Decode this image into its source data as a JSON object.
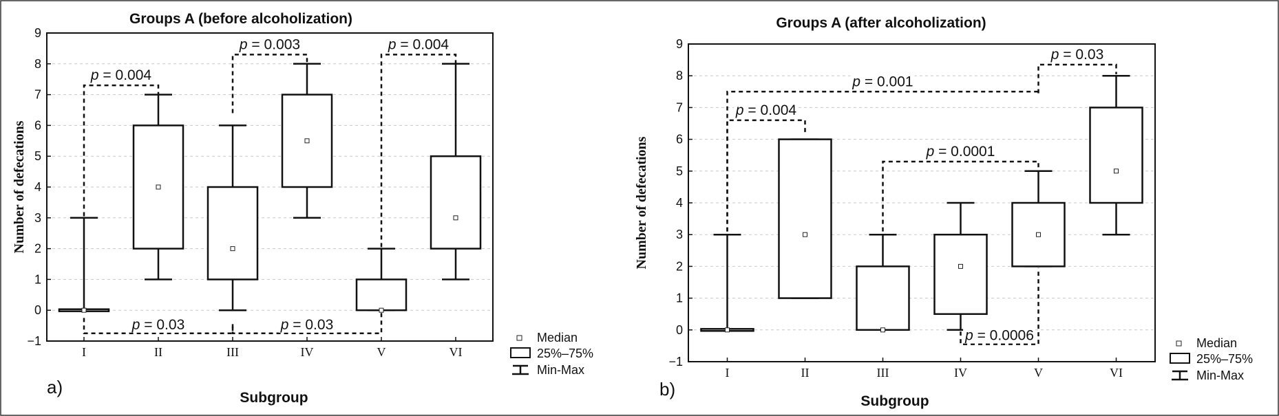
{
  "chart_data": [
    {
      "type": "box",
      "panel_label": "a)",
      "title": "Groups A (before alcoholization)",
      "xlabel": "Subgroup",
      "ylabel": "Number of defecations",
      "ylim": [
        -1,
        9
      ],
      "yticks": [
        "−1",
        "0",
        "1",
        "2",
        "3",
        "4",
        "5",
        "6",
        "7",
        "8",
        "9"
      ],
      "grid": "dashed horizontal",
      "categories": [
        "I",
        "II",
        "III",
        "IV",
        "V",
        "VI"
      ],
      "boxes": [
        {
          "min": 0,
          "q1": 0,
          "median": 0,
          "q3": 0,
          "max": 3
        },
        {
          "min": 1,
          "q1": 2,
          "median": 4,
          "q3": 6,
          "max": 7
        },
        {
          "min": 0,
          "q1": 1,
          "median": 2,
          "q3": 4,
          "max": 6
        },
        {
          "min": 3,
          "q1": 4,
          "median": 5.5,
          "q3": 7,
          "max": 8
        },
        {
          "min": 0,
          "q1": 0,
          "median": 0,
          "q3": 1,
          "max": 2
        },
        {
          "min": 1,
          "q1": 2,
          "median": 3,
          "q3": 5,
          "max": 8
        }
      ],
      "comparisons": [
        {
          "from": "I",
          "to": "II",
          "label": "p = 0.004",
          "side": "top"
        },
        {
          "from": "III",
          "to": "IV",
          "label": "p = 0.003",
          "side": "top"
        },
        {
          "from": "V",
          "to": "VI",
          "label": "p = 0.004",
          "side": "top"
        },
        {
          "from": "I",
          "to": "III",
          "label": "p = 0.03",
          "side": "bottom"
        },
        {
          "from": "III",
          "to": "V",
          "label": "p = 0.03",
          "side": "bottom"
        }
      ],
      "legend": {
        "placement": "bottom-right",
        "items": [
          "Median",
          "25%–75%",
          "Min-Max"
        ]
      }
    },
    {
      "type": "box",
      "panel_label": "b)",
      "title": "Groups A (after alcoholization)",
      "xlabel": "Subgroup",
      "ylabel": "Number of defecations",
      "ylim": [
        -1,
        9
      ],
      "yticks": [
        "−1",
        "0",
        "1",
        "2",
        "3",
        "4",
        "5",
        "6",
        "7",
        "8",
        "9"
      ],
      "grid": "dashed horizontal",
      "categories": [
        "I",
        "II",
        "III",
        "IV",
        "V",
        "VI"
      ],
      "boxes": [
        {
          "min": 0,
          "q1": 0,
          "median": 0,
          "q3": 0,
          "max": 3
        },
        {
          "min": 1,
          "q1": 1,
          "median": 3,
          "q3": 6,
          "max": 6
        },
        {
          "min": 0,
          "q1": 0,
          "median": 0,
          "q3": 2,
          "max": 3
        },
        {
          "min": 0,
          "q1": 0.5,
          "median": 2,
          "q3": 3,
          "max": 4
        },
        {
          "min": 2,
          "q1": 2,
          "median": 3,
          "q3": 4,
          "max": 5
        },
        {
          "min": 3,
          "q1": 4,
          "median": 5,
          "q3": 7,
          "max": 8
        }
      ],
      "comparisons": [
        {
          "from": "I",
          "to": "V",
          "label": "p = 0.001",
          "side": "top"
        },
        {
          "from": "I",
          "to": "II",
          "label": "p = 0.004",
          "side": "top"
        },
        {
          "from": "III",
          "to": "V",
          "label": "p = 0.0001",
          "side": "top"
        },
        {
          "from": "V",
          "to": "VI",
          "label": "p = 0.03",
          "side": "top"
        },
        {
          "from": "IV",
          "to": "V",
          "label": "p = 0.0006",
          "side": "bottom"
        }
      ],
      "legend": {
        "placement": "bottom-right",
        "items": [
          "Median",
          "25%–75%",
          "Min-Max"
        ]
      }
    }
  ]
}
